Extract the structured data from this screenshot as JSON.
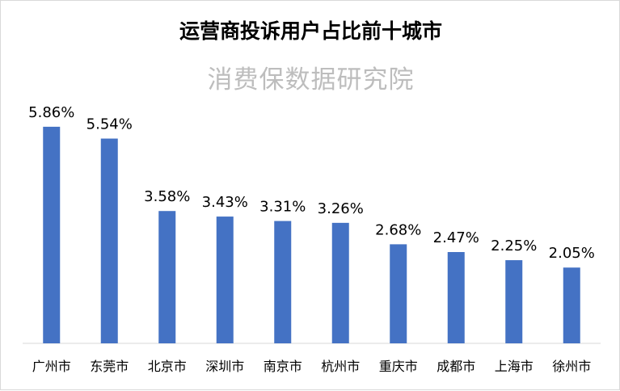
{
  "chart_data": {
    "type": "bar",
    "title": "运营商投诉用户占比前十城市",
    "subtitle": "消费保数据研究院",
    "categories": [
      "广州市",
      "东莞市",
      "北京市",
      "深圳市",
      "南京市",
      "杭州市",
      "重庆市",
      "成都市",
      "上海市",
      "徐州市"
    ],
    "values": [
      5.86,
      5.54,
      3.58,
      3.43,
      3.31,
      3.26,
      2.68,
      2.47,
      2.25,
      2.05
    ],
    "value_labels": [
      "5.86%",
      "5.54%",
      "3.58%",
      "3.43%",
      "3.31%",
      "3.26%",
      "2.68%",
      "2.47%",
      "2.25%",
      "2.05%"
    ],
    "ylim": [
      0,
      6.12
    ],
    "grid": false,
    "legend": "none",
    "bar_color": "#4472c4"
  }
}
